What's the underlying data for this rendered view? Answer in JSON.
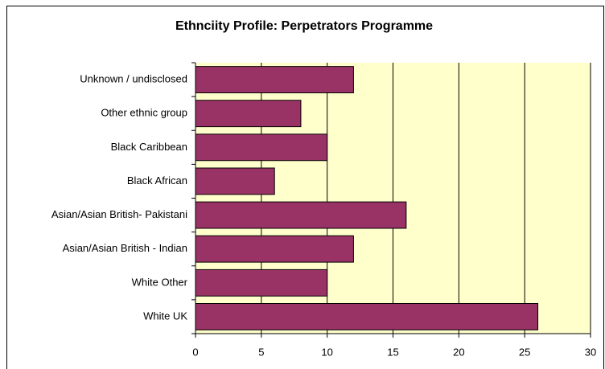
{
  "chart_data": {
    "type": "bar",
    "orientation": "horizontal",
    "title": "Ethnciity Profile: Perpetrators Programme",
    "categories": [
      "Unknown / undisclosed",
      "Other ethnic group",
      "Black Caribbean",
      "Black African",
      "Asian/Asian British- Pakistani",
      "Asian/Asian British - Indian",
      "White Other",
      "White UK"
    ],
    "values": [
      12,
      8,
      10,
      6,
      16,
      12,
      10,
      26
    ],
    "color": "#993366",
    "xlim": [
      0,
      30
    ],
    "xticks": [
      0,
      5,
      10,
      15,
      20,
      25,
      30
    ],
    "grid": true
  }
}
